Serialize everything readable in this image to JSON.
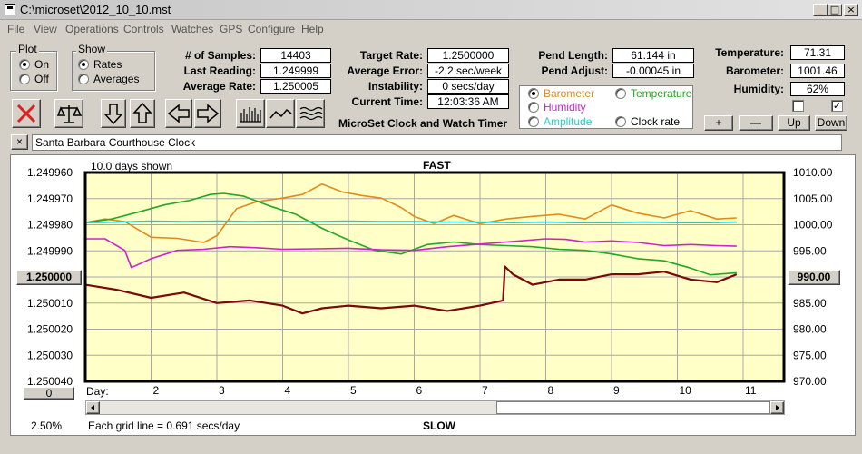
{
  "window": {
    "title": "C:\\microset\\2012_10_10.mst",
    "minimize": "_",
    "maximize": "□",
    "close": "×"
  },
  "menu": [
    "File",
    "View",
    "Operations",
    "Controls",
    "Watches",
    "GPS",
    "Configure",
    "Help"
  ],
  "plot_group": {
    "label": "Plot",
    "options": [
      "On",
      "Off"
    ],
    "selected": "On"
  },
  "show_group": {
    "label": "Show",
    "options": [
      "Rates",
      "Averages"
    ],
    "selected": "Rates"
  },
  "stats": {
    "samples_label": "# of Samples:",
    "samples": "14403",
    "last_reading_label": "Last Reading:",
    "last_reading": "1.249999",
    "average_rate_label": "Average Rate:",
    "average_rate": "1.250005",
    "target_rate_label": "Target Rate:",
    "target_rate": "1.2500000",
    "average_error_label": "Average Error:",
    "average_error": "-2.2 sec/week",
    "instability_label": "Instability:",
    "instability": "0 secs/day",
    "current_time_label": "Current Time:",
    "current_time": "12:03:36 AM",
    "pend_length_label": "Pend Length:",
    "pend_length": "61.144 in",
    "pend_adjust_label": "Pend Adjust:",
    "pend_adjust": "-0.00045 in",
    "temperature_label": "Temperature:",
    "temperature": "71.31",
    "barometer_label": "Barometer:",
    "barometer": "1001.46",
    "humidity_label": "Humidity:",
    "humidity": "62%"
  },
  "app_caption": "MicroSet Clock and Watch Timer",
  "sensor_select": {
    "options": [
      {
        "label": "Barometer",
        "color": "#e08a1e"
      },
      {
        "label": "Temperature",
        "color": "#22a822"
      },
      {
        "label": "Humidity",
        "color": "#cc22cc"
      },
      {
        "label": "Amplitude",
        "color": "#22cccc"
      },
      {
        "label": "Clock rate",
        "color": "#000000"
      }
    ],
    "selected": "Barometer"
  },
  "scale_buttons": [
    "+",
    "—",
    "Up",
    "Down"
  ],
  "checkbox_left": {
    "checked": false,
    "mark": ""
  },
  "checkbox_right": {
    "checked": true,
    "mark": "✓"
  },
  "clock_name": "Santa Barbara Courthouse Clock",
  "clear_label": "×",
  "chart_data": {
    "type": "line",
    "title": "FAST",
    "bottom_label": "SLOW",
    "days_shown": "10.0 days shown",
    "grid_note": "Each grid line = 0.691 secs/day",
    "zoom": "2.50%",
    "x_axis_label": "Day:",
    "x_ticks": [
      2,
      3,
      4,
      5,
      6,
      7,
      8,
      9,
      10,
      11
    ],
    "xlim": [
      1,
      11
    ],
    "y_left_ticks": [
      "1.249960",
      "1.249970",
      "1.249980",
      "1.249990",
      "1.250000",
      "1.250010",
      "1.250020",
      "1.250030",
      "1.250040"
    ],
    "y_left_lim": [
      1.24996,
      1.25004
    ],
    "y_left_center": "1.250000",
    "y_right_ticks": [
      "1010.00",
      "1005.00",
      "1000.00",
      "995.00",
      "990.00",
      "985.00",
      "980.00",
      "975.00",
      "970.00"
    ],
    "y_right_lim": [
      1010,
      970
    ],
    "y_right_center": "990.00",
    "x_offset_button": "0",
    "grid": true,
    "series": [
      {
        "name": "Barometer",
        "color": "#e08a1e",
        "scale": "right",
        "x": [
          1,
          1.3,
          1.6,
          2,
          2.4,
          2.8,
          3,
          3.3,
          3.6,
          4,
          4.3,
          4.6,
          4.9,
          5.2,
          5.5,
          5.8,
          6,
          6.3,
          6.6,
          7,
          7.4,
          7.8,
          8.2,
          8.6,
          9,
          9.4,
          9.8,
          10.2,
          10.6,
          10.9
        ],
        "y": [
          1000.4,
          1001.1,
          1000.6,
          997.6,
          997.4,
          996.6,
          997.9,
          1003.1,
          1004.4,
          1005.1,
          1005.8,
          1007.8,
          1006.3,
          1005.6,
          1005.1,
          1003.3,
          1001.6,
          1000.2,
          1001.8,
          1000.2,
          1001.1,
          1001.6,
          1002.0,
          1001.1,
          1003.8,
          1002.2,
          1001.3,
          1002.7,
          1001.1,
          1001.3
        ]
      },
      {
        "name": "Temperature",
        "color": "#22a822",
        "scale": "right",
        "x": [
          1,
          1.4,
          1.8,
          2.2,
          2.6,
          2.9,
          3.1,
          3.4,
          3.8,
          4.2,
          4.6,
          5,
          5.4,
          5.8,
          6.2,
          6.6,
          7,
          7.4,
          7.8,
          8.2,
          8.6,
          9,
          9.4,
          9.8,
          10.2,
          10.5,
          10.9
        ],
        "y": [
          1000.4,
          1001.1,
          1002.4,
          1003.8,
          1004.7,
          1005.8,
          1006.0,
          1005.5,
          1003.6,
          1002.0,
          999.3,
          997.1,
          995.1,
          994.4,
          996.2,
          996.7,
          996.2,
          996.0,
          995.8,
          995.3,
          995.1,
          994.4,
          993.5,
          993.1,
          991.7,
          990.4,
          990.8
        ]
      },
      {
        "name": "Amplitude",
        "color": "#22cccc",
        "scale": "right",
        "x": [
          1,
          1.5,
          2,
          2.5,
          3,
          3.5,
          4,
          4.5,
          5,
          5.5,
          6,
          6.5,
          7,
          7.5,
          8,
          8.5,
          9,
          9.5,
          10,
          10.5,
          10.9
        ],
        "y": [
          1000.4,
          1000.5,
          1000.7,
          1000.6,
          1000.7,
          1000.6,
          1000.7,
          1000.6,
          1000.7,
          1000.6,
          1000.6,
          1000.5,
          1000.5,
          1000.4,
          1000.5,
          1000.4,
          1000.4,
          1000.5,
          1000.4,
          1000.4,
          1000.5
        ]
      },
      {
        "name": "Humidity",
        "color": "#cc22cc",
        "scale": "right",
        "x": [
          1,
          1.3,
          1.6,
          1.7,
          2,
          2.4,
          2.8,
          3.2,
          3.6,
          4,
          4.5,
          5,
          5.5,
          6,
          6.5,
          7,
          7.5,
          8,
          8.3,
          8.6,
          9,
          9.4,
          9.8,
          10.2,
          10.6,
          10.9
        ],
        "y": [
          997.3,
          997.3,
          995.1,
          991.8,
          993.5,
          995.1,
          995.3,
          995.8,
          995.6,
          995.3,
          995.4,
          995.5,
          995.2,
          995.1,
          995.8,
          996.3,
          996.8,
          997.3,
          997.2,
          996.7,
          996.9,
          996.6,
          996.0,
          996.2,
          996.0,
          995.9
        ]
      },
      {
        "name": "Clock rate",
        "color": "#7a0a0a",
        "scale": "left",
        "x": [
          1,
          1.5,
          2,
          2.5,
          3,
          3.5,
          4,
          4.3,
          4.6,
          5,
          5.5,
          6,
          6.5,
          7,
          7.35,
          7.38,
          7.5,
          7.8,
          8.2,
          8.6,
          9,
          9.4,
          9.8,
          10.2,
          10.6,
          10.9
        ],
        "y": [
          1.250003,
          1.250005,
          1.250008,
          1.250006,
          1.25001,
          1.250009,
          1.250011,
          1.250014,
          1.250012,
          1.250011,
          1.250012,
          1.250011,
          1.250013,
          1.250011,
          1.250009,
          1.249996,
          1.249999,
          1.250003,
          1.250001,
          1.250001,
          1.249999,
          1.249999,
          1.249998,
          1.250001,
          1.250002,
          1.249999
        ]
      }
    ]
  }
}
